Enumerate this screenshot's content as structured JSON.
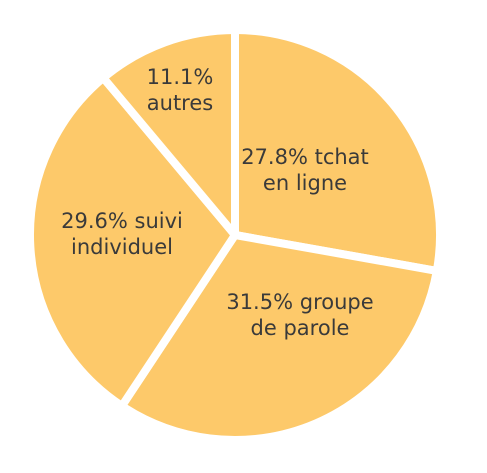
{
  "chart_data": {
    "type": "pie",
    "categories": [
      "tchat en ligne",
      "groupe de parole",
      "suivi individuel",
      "autres"
    ],
    "values": [
      27.8,
      31.5,
      29.6,
      11.1
    ],
    "value_labels": [
      "27.8%",
      "31.5%",
      "29.6%",
      "11.1%"
    ],
    "color": "#fdc96a"
  }
}
